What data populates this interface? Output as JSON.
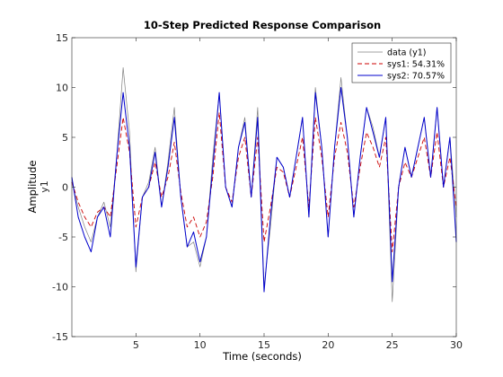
{
  "chart_data": {
    "type": "line",
    "title": "10-Step Predicted Response Comparison",
    "xlabel": "Time (seconds)",
    "ylabel": "Amplitude",
    "ylabel_sub": "y1",
    "xlim": [
      0,
      30
    ],
    "ylim": [
      -15,
      15
    ],
    "xticks": [
      5,
      10,
      15,
      20,
      25,
      30
    ],
    "yticks": [
      -15,
      -10,
      -5,
      0,
      5,
      10,
      15
    ],
    "grid": false,
    "legend_position": "top-right",
    "x": [
      0,
      0.5,
      1,
      1.5,
      2,
      2.5,
      3,
      3.5,
      4,
      4.5,
      5,
      5.5,
      6,
      6.5,
      7,
      7.5,
      8,
      8.5,
      9,
      9.5,
      10,
      10.5,
      11,
      11.5,
      12,
      12.5,
      13,
      13.5,
      14,
      14.5,
      15,
      15.5,
      16,
      16.5,
      17,
      17.5,
      18,
      18.5,
      19,
      19.5,
      20,
      20.5,
      21,
      21.5,
      22,
      22.5,
      23,
      23.5,
      24,
      24.5,
      25,
      25.5,
      26,
      26.5,
      27,
      27.5,
      28,
      28.5,
      29,
      29.5,
      30
    ],
    "series": [
      {
        "name": "data (y1)",
        "color": "#808080",
        "style": "solid",
        "values": [
          0.5,
          -2,
          -4,
          -5.5,
          -3,
          -1.5,
          -4,
          3,
          12,
          5.5,
          -8.5,
          -1,
          0.5,
          4,
          -2,
          2.5,
          8,
          -1,
          -6,
          -5.5,
          -8,
          -5,
          3,
          9.5,
          0,
          -2,
          4,
          7,
          -1,
          8,
          -10,
          -4,
          3,
          2,
          -1,
          3,
          7,
          -3,
          10,
          4,
          -5,
          4,
          11,
          5,
          -3,
          3,
          8,
          6,
          3,
          7,
          -11.5,
          0,
          4,
          1,
          4,
          7,
          1,
          8,
          0,
          5,
          -3
        ]
      },
      {
        "name": "sys1: 54.31%",
        "color": "#cc0000",
        "style": "dashed",
        "values": [
          0.5,
          -1.5,
          -3,
          -4,
          -2.5,
          -2,
          -3,
          2,
          7,
          3.5,
          -4,
          -1,
          0,
          2.5,
          -1,
          1,
          4.5,
          -0.5,
          -4,
          -3,
          -5,
          -3.5,
          1,
          7.5,
          0,
          -1.5,
          3,
          5,
          -1,
          5,
          -5.5,
          -2,
          2,
          1.5,
          -1,
          2,
          5,
          -2,
          7,
          3,
          -3,
          3,
          6.5,
          3.5,
          -2,
          2,
          5.5,
          4,
          2,
          5,
          -6.5,
          0,
          2.5,
          1,
          3,
          5,
          1,
          5.5,
          0,
          3,
          -2
        ]
      },
      {
        "name": "sys2: 70.57%",
        "color": "#0000cc",
        "style": "solid",
        "values": [
          1,
          -3,
          -5,
          -6.5,
          -3,
          -2,
          -5,
          3,
          9.5,
          4,
          -8,
          -1,
          0,
          3.5,
          -2,
          2,
          7,
          -1,
          -6,
          -4.5,
          -7.5,
          -5,
          2,
          9.5,
          0,
          -2,
          4,
          6.5,
          -1,
          7,
          -10.5,
          -3,
          3,
          2,
          -1,
          3,
          7,
          -3,
          9.5,
          4,
          -5,
          4,
          10,
          5,
          -3,
          3,
          8,
          5.5,
          3,
          7,
          -9.5,
          0,
          4,
          1,
          4,
          7,
          1,
          8,
          0,
          5,
          -5.5
        ]
      }
    ]
  }
}
